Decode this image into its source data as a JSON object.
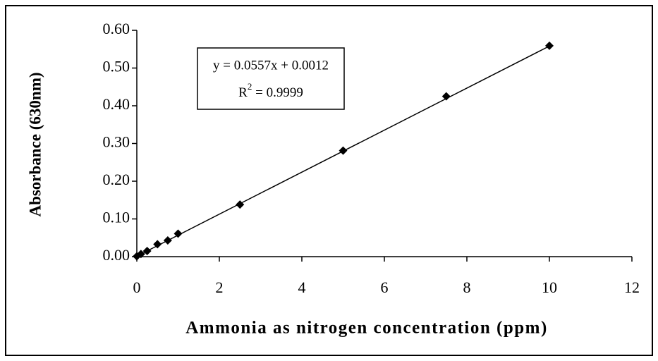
{
  "chart_data": {
    "type": "scatter",
    "x_label": "Ammonia as nitrogen concentration (ppm)",
    "y_label": "Absorbance (630nm)",
    "x": [
      0,
      0.1,
      0.25,
      0.5,
      0.75,
      1,
      2.5,
      5,
      7.5,
      10
    ],
    "series": [
      {
        "color": "#000000",
        "values": [
          0.001,
          0.007,
          0.015,
          0.033,
          0.043,
          0.061,
          0.138,
          0.281,
          0.425,
          0.559
        ]
      }
    ],
    "xlim": [
      0,
      12
    ],
    "xticks": [
      0,
      2,
      4,
      6,
      8,
      10,
      12
    ],
    "ylim": [
      0,
      0.6
    ],
    "yticks": [
      {
        "value": 0,
        "label": "0.00"
      },
      {
        "value": 0.1,
        "label": "0.10"
      },
      {
        "value": 0.2,
        "label": "0.20"
      },
      {
        "value": 0.3,
        "label": "0.30"
      },
      {
        "value": 0.4,
        "label": "0.40"
      },
      {
        "value": 0.5,
        "label": "0.50"
      },
      {
        "value": 0.6,
        "label": "0.60"
      }
    ],
    "trendline": {
      "slope": 0.0557,
      "intercept": 0.0012,
      "label": "y = 0.0557x + 0.0012"
    },
    "r_squared_label": [
      "R",
      "2",
      " = 0.9999"
    ]
  }
}
